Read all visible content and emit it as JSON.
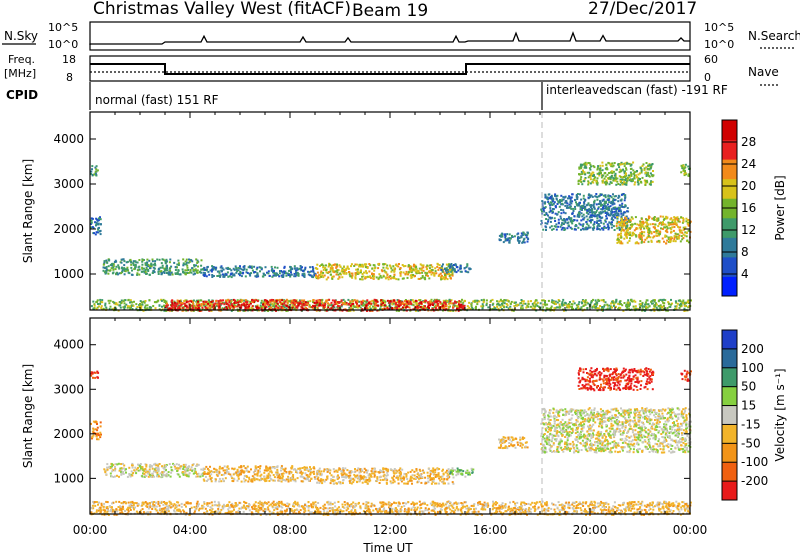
{
  "header": {
    "title": "Christmas Valley West (fitACF)",
    "beam": "Beam 19",
    "date": "27/Dec/2017"
  },
  "summary_panels": {
    "nsky": {
      "label": "N.Sky",
      "ticks_left": [
        "10^5",
        "10^0"
      ],
      "ticks_right": [
        "10^5",
        "10^0"
      ],
      "right_label": "N.Search"
    },
    "freq": {
      "label_lines": [
        "Freq.",
        "[MHz]"
      ],
      "ticks_left": [
        "18",
        "8"
      ],
      "ticks_right": [
        "60",
        "0"
      ],
      "right_label": "Nave"
    },
    "cpid": {
      "label": "CPID",
      "mode1": "normal (fast) 151 RF",
      "mode2": "interleavedscan (fast) -191 RF"
    }
  },
  "colorbars": {
    "power": {
      "label": "Power [dB]",
      "ticks": [
        "4",
        "8",
        "12",
        "16",
        "20",
        "24",
        "28"
      ],
      "colors": [
        "#0020ff",
        "#1f4fc8",
        "#2f7a9a",
        "#3e9a6a",
        "#73b42c",
        "#d8c21a",
        "#f28a1a",
        "#e82020",
        "#d00000"
      ]
    },
    "velocity": {
      "label": "Velocity [m s⁻¹]",
      "ticks": [
        "-200",
        "-100",
        "-50",
        "-15",
        "15",
        "50",
        "100",
        "200"
      ],
      "colors": [
        "#e81a1a",
        "#f06010",
        "#f29418",
        "#f2b42a",
        "#c8c8c0",
        "#86d040",
        "#3e9a6a",
        "#2a6a9a",
        "#1f3fc8"
      ]
    }
  },
  "chart_data": [
    {
      "type": "heatmap",
      "name": "Power",
      "xlabel": "",
      "ylabel": "Slant Range [km]",
      "x_ticks": [
        "00:00",
        "04:00",
        "08:00",
        "12:00",
        "16:00",
        "20:00",
        "00:00"
      ],
      "x_range_hours": [
        0,
        24
      ],
      "y_ticks": [
        1000,
        2000,
        3000,
        4000
      ],
      "y_range_km": [
        200,
        4600
      ],
      "scatter_regions": [
        {
          "t0": 0.0,
          "t1": 0.4,
          "r0": 1900,
          "r1": 2300,
          "level": 2
        },
        {
          "t0": 0.0,
          "t1": 0.3,
          "r0": 3200,
          "r1": 3450,
          "level": 3
        },
        {
          "t0": 0.5,
          "t1": 4.5,
          "r0": 1000,
          "r1": 1350,
          "level": 3
        },
        {
          "t0": 4.5,
          "t1": 9.0,
          "r0": 950,
          "r1": 1200,
          "level": 2
        },
        {
          "t0": 9.0,
          "t1": 14.5,
          "r0": 900,
          "r1": 1250,
          "level": 5
        },
        {
          "t0": 14.0,
          "t1": 15.2,
          "r0": 1050,
          "r1": 1250,
          "level": 2
        },
        {
          "t0": 16.3,
          "t1": 17.5,
          "r0": 1700,
          "r1": 1950,
          "level": 2
        },
        {
          "t0": 18.0,
          "t1": 21.5,
          "r0": 2000,
          "r1": 2800,
          "level": 2
        },
        {
          "t0": 21.0,
          "t1": 24.0,
          "r0": 1700,
          "r1": 2300,
          "level": 5
        },
        {
          "t0": 19.5,
          "t1": 22.5,
          "r0": 3000,
          "r1": 3500,
          "level": 4
        },
        {
          "t0": 23.6,
          "t1": 24.0,
          "r0": 3200,
          "r1": 3450,
          "level": 4
        },
        {
          "t0": 0.0,
          "t1": 24.0,
          "r0": 200,
          "r1": 450,
          "level": 4
        },
        {
          "t0": 3.0,
          "t1": 15.0,
          "r0": 200,
          "r1": 450,
          "level": 7
        }
      ]
    },
    {
      "type": "heatmap",
      "name": "Velocity",
      "xlabel": "Time UT",
      "ylabel": "Slant Range [km]",
      "x_ticks": [
        "00:00",
        "04:00",
        "08:00",
        "12:00",
        "16:00",
        "20:00",
        "00:00"
      ],
      "x_range_hours": [
        0,
        24
      ],
      "y_ticks": [
        1000,
        2000,
        3000,
        4000
      ],
      "y_range_km": [
        200,
        4600
      ],
      "scatter_regions": [
        {
          "t0": 0.0,
          "t1": 0.4,
          "r0": 1900,
          "r1": 2300,
          "level": 2
        },
        {
          "t0": 0.0,
          "t1": 0.3,
          "r0": 3250,
          "r1": 3450,
          "level": 0
        },
        {
          "t0": 0.5,
          "t1": 4.5,
          "r0": 1050,
          "r1": 1350,
          "level": 4
        },
        {
          "t0": 4.5,
          "t1": 9.0,
          "r0": 950,
          "r1": 1300,
          "level": 3
        },
        {
          "t0": 9.0,
          "t1": 14.5,
          "r0": 900,
          "r1": 1250,
          "level": 3
        },
        {
          "t0": 14.2,
          "t1": 15.3,
          "r0": 1050,
          "r1": 1250,
          "level": 5
        },
        {
          "t0": 16.3,
          "t1": 17.5,
          "r0": 1700,
          "r1": 1950,
          "level": 3
        },
        {
          "t0": 18.0,
          "t1": 24.0,
          "r0": 1600,
          "r1": 2600,
          "level": 4
        },
        {
          "t0": 19.5,
          "t1": 22.5,
          "r0": 3000,
          "r1": 3500,
          "level": 0
        },
        {
          "t0": 23.6,
          "t1": 24.0,
          "r0": 3200,
          "r1": 3450,
          "level": 0
        },
        {
          "t0": 0.0,
          "t1": 24.0,
          "r0": 200,
          "r1": 500,
          "level": 3
        }
      ]
    }
  ]
}
